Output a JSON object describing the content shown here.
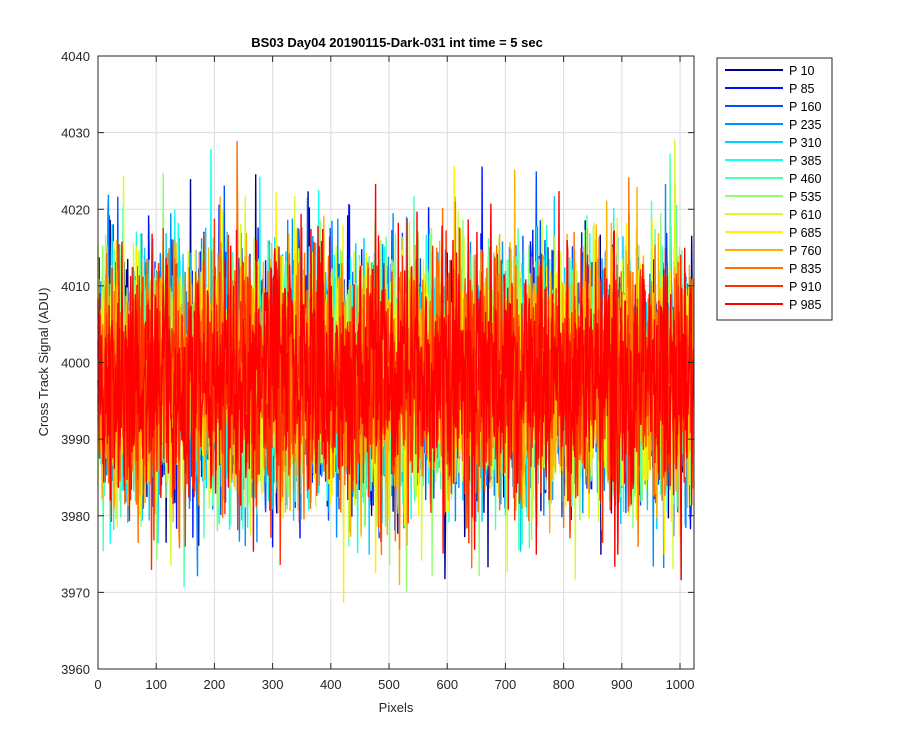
{
  "chart_data": {
    "type": "line",
    "title": "BS03 Day04 20190115-Dark-031 int time = 5 sec",
    "xlabel": "Pixels",
    "ylabel": "Cross Track Signal (ADU)",
    "xlim": [
      0,
      1024
    ],
    "ylim": [
      3960,
      4040
    ],
    "xticks": [
      0,
      100,
      200,
      300,
      400,
      500,
      600,
      700,
      800,
      900,
      1000
    ],
    "yticks": [
      3960,
      3970,
      3980,
      3990,
      4000,
      4010,
      4020,
      4030,
      4040
    ],
    "grid": true,
    "legend_position": "outside-top-right",
    "n_points": 1024,
    "noise_mean": 3998,
    "noise_std": 8,
    "series": [
      {
        "name": "P 10",
        "color": "#00008f"
      },
      {
        "name": "P 85",
        "color": "#0010ff"
      },
      {
        "name": "P 160",
        "color": "#0050ff"
      },
      {
        "name": "P 235",
        "color": "#008fff"
      },
      {
        "name": "P 310",
        "color": "#00cfff"
      },
      {
        "name": "P 385",
        "color": "#10ffef"
      },
      {
        "name": "P 460",
        "color": "#50ffaf"
      },
      {
        "name": "P 535",
        "color": "#8fff70"
      },
      {
        "name": "P 610",
        "color": "#cfff30"
      },
      {
        "name": "P 685",
        "color": "#ffef00"
      },
      {
        "name": "P 760",
        "color": "#ffb000"
      },
      {
        "name": "P 835",
        "color": "#ff7000"
      },
      {
        "name": "P 910",
        "color": "#ff3000"
      },
      {
        "name": "P 985",
        "color": "#ff0000"
      }
    ]
  }
}
